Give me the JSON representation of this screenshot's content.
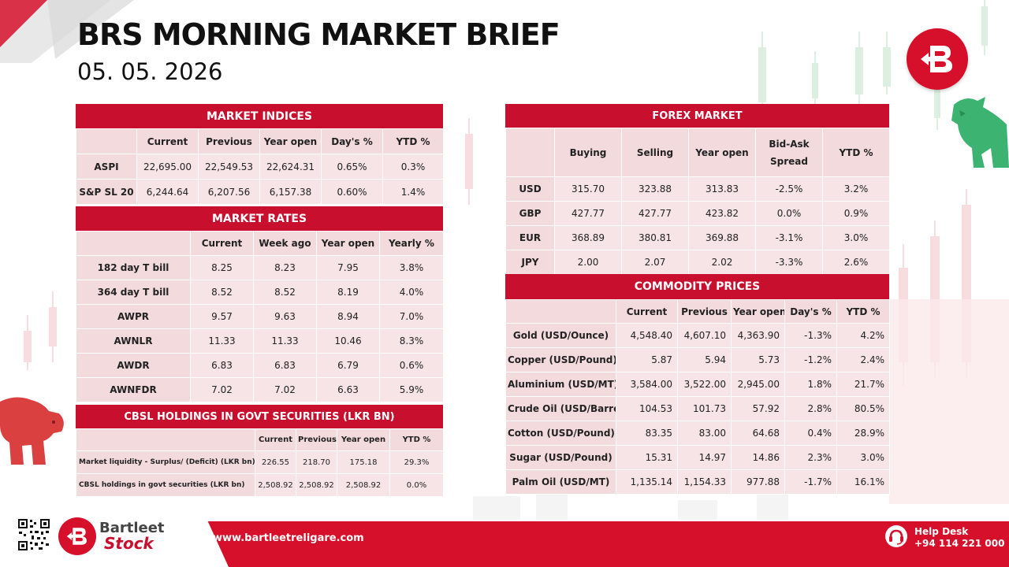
{
  "header": {
    "title": "BRS MORNING MARKET BRIEF",
    "date": "05. 05. 2026"
  },
  "market_indices": {
    "title": "MARKET INDICES",
    "columns": [
      "",
      "Current",
      "Previous",
      "Year open",
      "Day's %",
      "YTD %"
    ],
    "rows": [
      [
        "ASPI",
        "22,695.00",
        "22,549.53",
        "22,624.31",
        "0.65%",
        "0.3%"
      ],
      [
        "S&P SL 20",
        "6,244.64",
        "6,207.56",
        "6,157.38",
        "0.60%",
        "1.4%"
      ]
    ]
  },
  "market_rates": {
    "title": "MARKET RATES",
    "columns": [
      "",
      "Current",
      "Week ago",
      "Year open",
      "Yearly %"
    ],
    "rows": [
      [
        "182 day T bill",
        "8.25",
        "8.23",
        "7.95",
        "3.8%"
      ],
      [
        "364 day T bill",
        "8.52",
        "8.52",
        "8.19",
        "4.0%"
      ],
      [
        "AWPR",
        "9.57",
        "9.63",
        "8.94",
        "7.0%"
      ],
      [
        "AWNLR",
        "11.33",
        "11.33",
        "10.46",
        "8.3%"
      ],
      [
        "AWDR",
        "6.83",
        "6.83",
        "6.79",
        "0.6%"
      ],
      [
        "AWNFDR",
        "7.02",
        "7.02",
        "6.63",
        "5.9%"
      ]
    ]
  },
  "cbsl": {
    "title": "CBSL HOLDINGS IN GOVT SECURITIES (LKR BN)",
    "columns": [
      "",
      "Current",
      "Previous",
      "Year open",
      "YTD %"
    ],
    "rows": [
      [
        "Market liquidity - Surplus/ (Deficit) (LKR bn)",
        "226.55",
        "218.70",
        "175.18",
        "29.3%"
      ],
      [
        "CBSL holdings in govt securities (LKR bn)",
        "2,508.92",
        "2,508.92",
        "2,508.92",
        "0.0%"
      ]
    ]
  },
  "forex": {
    "title": "FOREX MARKET",
    "columns": [
      "",
      "Buying",
      "Selling",
      "Year open",
      "Bid-Ask Spread",
      "YTD %"
    ],
    "rows": [
      [
        "USD",
        "315.70",
        "323.88",
        "313.83",
        "-2.5%",
        "3.2%"
      ],
      [
        "GBP",
        "427.77",
        "427.77",
        "423.82",
        "0.0%",
        "0.9%"
      ],
      [
        "EUR",
        "368.89",
        "380.81",
        "369.88",
        "-3.1%",
        "3.0%"
      ],
      [
        "JPY",
        "2.00",
        "2.07",
        "2.02",
        "-3.3%",
        "2.6%"
      ]
    ]
  },
  "commodities": {
    "title": "COMMODITY PRICES",
    "columns": [
      "",
      "Current",
      "Previous",
      "Year open",
      "Day's %",
      "YTD %"
    ],
    "rows": [
      [
        "Gold (USD/Ounce)",
        "4,548.40",
        "4,607.10",
        "4,363.90",
        "-1.3%",
        "4.2%"
      ],
      [
        "Copper (USD/Pound)",
        "5.87",
        "5.94",
        "5.73",
        "-1.2%",
        "2.4%"
      ],
      [
        "Aluminium (USD/MT)",
        "3,584.00",
        "3,522.00",
        "2,945.00",
        "1.8%",
        "21.7%"
      ],
      [
        "Crude Oil (USD/Barrel)",
        "104.53",
        "101.73",
        "57.92",
        "2.8%",
        "80.5%"
      ],
      [
        "Cotton (USD/Pound)",
        "83.35",
        "83.00",
        "64.68",
        "0.4%",
        "28.9%"
      ],
      [
        "Sugar (USD/Pound)",
        "15.31",
        "14.97",
        "14.86",
        "2.3%",
        "3.0%"
      ],
      [
        "Palm Oil (USD/MT)",
        "1,135.14",
        "1,154.33",
        "977.88",
        "-1.7%",
        "16.1%"
      ]
    ]
  },
  "footer": {
    "brand_top": "Bartleet",
    "brand_bottom": "Stock",
    "website": "www.bartleetreligare.com",
    "help_title": "Help Desk",
    "help_phone": "+94 114 221 000"
  },
  "colors": {
    "brand_red": "#c8102e",
    "cell_pink": "#f6e4e6",
    "bull_green": "#3cb371"
  },
  "icons": [
    "brand-logo-icon",
    "bull-icon",
    "bear-icon",
    "qr-code-icon",
    "headset-icon"
  ]
}
